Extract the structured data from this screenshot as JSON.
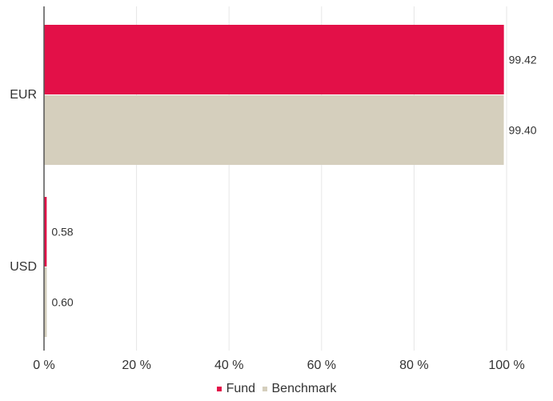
{
  "chart_data": {
    "type": "bar",
    "orientation": "horizontal",
    "title": "",
    "xlabel": "",
    "ylabel": "",
    "categories": [
      "EUR",
      "USD"
    ],
    "series": [
      {
        "name": "Fund",
        "values": [
          99.42,
          0.58
        ],
        "labels": [
          "99.42",
          "0.58"
        ],
        "color": "#e31048"
      },
      {
        "name": "Benchmark",
        "values": [
          99.4,
          0.6
        ],
        "labels": [
          "99.40",
          "0.60"
        ],
        "color": "#d5cfbd"
      }
    ],
    "xlim": [
      0,
      100
    ],
    "xticks": [
      0,
      20,
      40,
      60,
      80,
      100
    ],
    "xtick_labels": [
      "0 %",
      "20 %",
      "40 %",
      "60 %",
      "80 %",
      "100 %"
    ],
    "grid": true,
    "legend_position": "bottom-center"
  }
}
